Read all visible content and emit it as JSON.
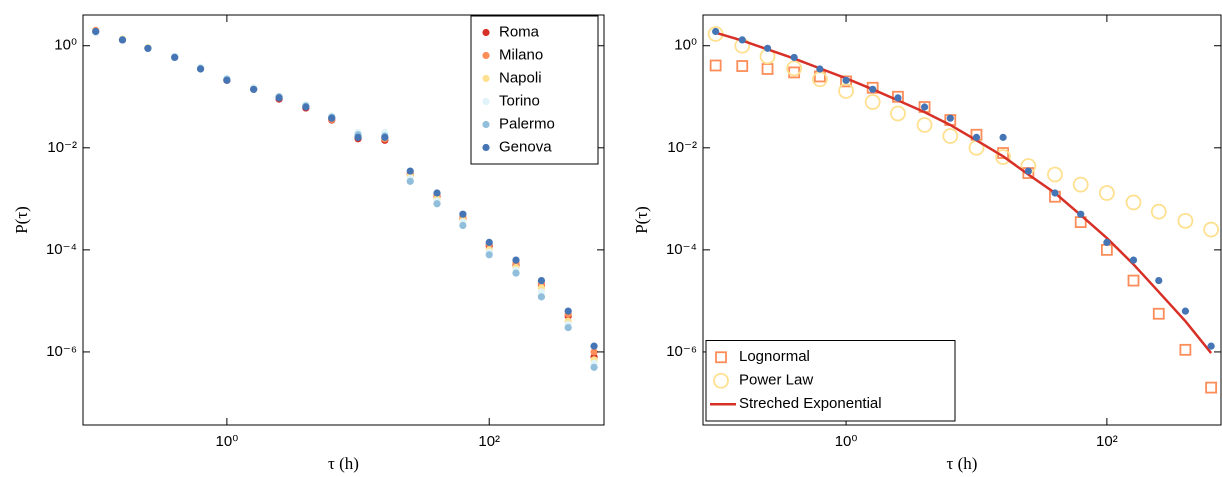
{
  "chart_data": [
    {
      "type": "scatter",
      "xlabel": "τ (h)",
      "ylabel": "P(τ)",
      "xlog": true,
      "ylog": true,
      "xlim": [
        0.08,
        750
      ],
      "ylim": [
        3.7e-08,
        4
      ],
      "xticks": [
        {
          "value": 1,
          "label": "10⁰"
        },
        {
          "value": 100,
          "label": "10²"
        }
      ],
      "yticks": [
        {
          "value": 1,
          "label": "10⁰"
        },
        {
          "value": 0.01,
          "label": "10⁻²"
        },
        {
          "value": 0.0001,
          "label": "10⁻⁴"
        },
        {
          "value": 1e-06,
          "label": "10⁻⁶"
        }
      ],
      "legend": "upper right",
      "x": [
        0.1,
        0.16,
        0.25,
        0.4,
        0.63,
        1,
        1.6,
        2.5,
        4,
        6.3,
        10,
        16,
        25,
        40,
        63,
        100,
        160,
        250,
        400,
        630
      ],
      "series": [
        {
          "name": "Roma",
          "color": "#d73027",
          "marker": "dot",
          "values": [
            1.9,
            1.3,
            0.9,
            0.6,
            0.36,
            0.21,
            0.14,
            0.09,
            0.06,
            0.035,
            0.015,
            0.014,
            0.003,
            0.0011,
            0.0004,
            0.00012,
            5e-05,
            2e-05,
            5e-06,
            8e-07
          ]
        },
        {
          "name": "Milano",
          "color": "#fc8d59",
          "marker": "dot",
          "values": [
            2.0,
            1.3,
            0.9,
            0.6,
            0.36,
            0.22,
            0.14,
            0.1,
            0.065,
            0.036,
            0.017,
            0.015,
            0.0032,
            0.0012,
            0.00045,
            0.00013,
            5.5e-05,
            2.2e-05,
            5.5e-06,
            1e-06
          ]
        },
        {
          "name": "Napoli",
          "color": "#fee090",
          "marker": "dot",
          "values": [
            1.9,
            1.35,
            0.92,
            0.6,
            0.37,
            0.22,
            0.15,
            0.1,
            0.066,
            0.04,
            0.018,
            0.016,
            0.0028,
            0.001,
            0.00038,
            0.0001,
            4.5e-05,
            1.8e-05,
            4e-06,
            7e-07
          ]
        },
        {
          "name": "Torino",
          "color": "#e0f3f8",
          "marker": "dot",
          "values": [
            1.8,
            1.3,
            0.9,
            0.62,
            0.38,
            0.23,
            0.15,
            0.1,
            0.07,
            0.042,
            0.02,
            0.02,
            0.0025,
            0.0009,
            0.00035,
            9e-05,
            4e-05,
            1.5e-05,
            3.5e-06,
            6e-07
          ]
        },
        {
          "name": "Palermo",
          "color": "#91bfdb",
          "marker": "dot",
          "values": [
            1.9,
            1.3,
            0.88,
            0.6,
            0.36,
            0.22,
            0.14,
            0.1,
            0.066,
            0.04,
            0.018,
            0.017,
            0.0022,
            0.0008,
            0.0003,
            8e-05,
            3.5e-05,
            1.2e-05,
            3e-06,
            5e-07
          ]
        },
        {
          "name": "Genova",
          "color": "#4575b4",
          "marker": "dot",
          "values": [
            1.9,
            1.3,
            0.89,
            0.59,
            0.35,
            0.21,
            0.14,
            0.095,
            0.063,
            0.038,
            0.016,
            0.016,
            0.0035,
            0.0013,
            0.0005,
            0.00014,
            6.3e-05,
            2.5e-05,
            6.3e-06,
            1.3e-06
          ]
        }
      ]
    },
    {
      "type": "scatter",
      "xlabel": "τ (h)",
      "ylabel": "P(τ)",
      "xlog": true,
      "ylog": true,
      "xlim": [
        0.08,
        750
      ],
      "ylim": [
        3.7e-08,
        4
      ],
      "xticks": [
        {
          "value": 1,
          "label": "10⁰"
        },
        {
          "value": 100,
          "label": "10²"
        }
      ],
      "yticks": [
        {
          "value": 1,
          "label": "10⁰"
        },
        {
          "value": 0.01,
          "label": "10⁻²"
        },
        {
          "value": 0.0001,
          "label": "10⁻⁴"
        },
        {
          "value": 1e-06,
          "label": "10⁻⁶"
        }
      ],
      "legend": "lower left",
      "x": [
        0.1,
        0.16,
        0.25,
        0.4,
        0.63,
        1,
        1.6,
        2.5,
        4,
        6.3,
        10,
        16,
        25,
        40,
        63,
        100,
        160,
        250,
        400,
        630
      ],
      "series": [
        {
          "name": "Lognormal",
          "color": "#fc8d59",
          "marker": "square",
          "values": [
            0.41,
            0.4,
            0.35,
            0.3,
            0.25,
            0.2,
            0.15,
            0.1,
            0.063,
            0.035,
            0.018,
            0.0079,
            0.0032,
            0.0011,
            0.00035,
            0.0001,
            2.5e-05,
            5.6e-06,
            1.1e-06,
            2e-07
          ]
        },
        {
          "name": "Power Law",
          "color": "#fee090",
          "marker": "circle",
          "values": [
            1.7,
            1.0,
            0.62,
            0.36,
            0.22,
            0.13,
            0.079,
            0.047,
            0.028,
            0.017,
            0.01,
            0.0066,
            0.0044,
            0.003,
            0.0019,
            0.0013,
            0.00085,
            0.00056,
            0.00037,
            0.00025
          ]
        },
        {
          "name": "Streched Exponential",
          "color": "#d73027",
          "marker": "line",
          "values": [
            1.8,
            1.26,
            0.85,
            0.56,
            0.36,
            0.23,
            0.14,
            0.085,
            0.05,
            0.028,
            0.014,
            0.0068,
            0.003,
            0.0013,
            0.00048,
            0.00017,
            5.2e-05,
            1.5e-05,
            4e-06,
            9.5e-07
          ]
        },
        {
          "color": "#4575b4",
          "marker": "dot",
          "values": [
            1.9,
            1.3,
            0.89,
            0.59,
            0.35,
            0.21,
            0.14,
            0.095,
            0.063,
            0.038,
            0.016,
            0.016,
            0.0035,
            0.0013,
            0.0005,
            0.00014,
            6.3e-05,
            2.5e-05,
            6.3e-06,
            1.3e-06
          ]
        }
      ]
    }
  ]
}
